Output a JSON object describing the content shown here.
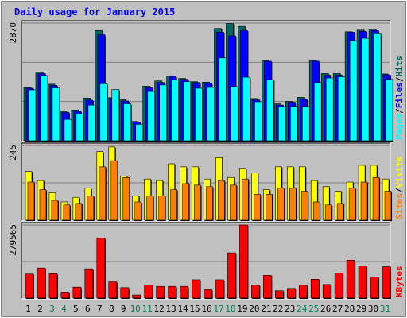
{
  "chart_data": {
    "type": "bar",
    "title": "Daily usage for January 2015",
    "categories": [
      "1",
      "2",
      "3",
      "4",
      "5",
      "6",
      "7",
      "8",
      "9",
      "10",
      "11",
      "12",
      "13",
      "14",
      "15",
      "16",
      "17",
      "18",
      "19",
      "20",
      "21",
      "22",
      "23",
      "24",
      "25",
      "26",
      "27",
      "28",
      "29",
      "30",
      "31"
    ],
    "weekend_days": [
      "3",
      "4",
      "10",
      "11",
      "17",
      "18",
      "24",
      "25",
      "31"
    ],
    "panels": [
      {
        "id": "top",
        "max_label": "2870",
        "ylim": [
          0,
          2870
        ],
        "series": [
          {
            "name": "Hits",
            "color": "#006666",
            "values": [
              1300,
              1680,
              1380,
              720,
              750,
              1040,
              2690,
              1050,
              1000,
              470,
              1330,
              1460,
              1580,
              1520,
              1440,
              1430,
              2740,
              2860,
              2790,
              1030,
              1960,
              900,
              960,
              1060,
              1960,
              1640,
              1640,
              2660,
              2700,
              2720,
              1630
            ]
          },
          {
            "name": "Files",
            "color": "#0000ff",
            "values": [
              1280,
              1640,
              1350,
              690,
              720,
              990,
              2590,
              1030,
              970,
              450,
              1290,
              1420,
              1570,
              1500,
              1420,
              1400,
              2650,
              2560,
              2690,
              1000,
              1940,
              870,
              940,
              1020,
              1940,
              1600,
              1600,
              2650,
              2670,
              2690,
              1610
            ]
          },
          {
            "name": "Pages",
            "color": "#00ffff",
            "values": [
              1240,
              1590,
              1290,
              520,
              650,
              870,
              1390,
              1250,
              900,
              400,
              1200,
              1360,
              1480,
              1440,
              1280,
              1300,
              2020,
              1320,
              1550,
              950,
              1480,
              820,
              840,
              840,
              1420,
              1530,
              1560,
              2440,
              2500,
              2610,
              1500
            ]
          }
        ],
        "legend": [
          {
            "label": "Hits",
            "color": "#006666"
          },
          {
            "label": "/",
            "color": "#000000"
          },
          {
            "label": "Files",
            "color": "#0000ff"
          },
          {
            "label": "/",
            "color": "#000000"
          },
          {
            "label": "Pages",
            "color": "#00ffff"
          }
        ]
      },
      {
        "id": "middle",
        "max_label": "245",
        "ylim": [
          0,
          245
        ],
        "series": [
          {
            "name": "Visits",
            "color": "#ffff00",
            "values": [
              160,
              130,
              90,
              60,
              75,
              105,
              225,
              240,
              145,
              80,
              135,
              130,
              185,
              175,
              175,
              135,
              205,
              140,
              170,
              155,
              100,
              175,
              175,
              175,
              130,
              110,
              95,
              125,
              180,
              180,
              135
            ]
          },
          {
            "name": "Sites",
            "color": "#ff8000",
            "values": [
              125,
              100,
              65,
              50,
              55,
              80,
              175,
              195,
              140,
              60,
              80,
              80,
              100,
              120,
              115,
              110,
              130,
              115,
              135,
              85,
              85,
              105,
              105,
              95,
              60,
              50,
              55,
              105,
              125,
              140,
              95
            ]
          }
        ],
        "legend": [
          {
            "label": "Visits",
            "color": "#ffff00"
          },
          {
            "label": "/",
            "color": "#000000"
          },
          {
            "label": "Sites",
            "color": "#ff8000"
          }
        ]
      },
      {
        "id": "bottom",
        "max_label": "279565",
        "ylim": [
          0,
          279565
        ],
        "series": [
          {
            "name": "KBytes",
            "color": "#ff0000",
            "values": [
              92000,
              115000,
              93000,
              23000,
              42000,
              112000,
              230000,
              62000,
              40000,
              12000,
              50000,
              45000,
              45000,
              45000,
              70000,
              32000,
              70000,
              173000,
              279565,
              50000,
              87000,
              28000,
              37000,
              50000,
              72000,
              52000,
              95000,
              145000,
              123000,
              80000,
              120000
            ]
          }
        ],
        "legend": [
          {
            "label": "KBytes",
            "color": "#ff0000"
          }
        ]
      }
    ]
  }
}
